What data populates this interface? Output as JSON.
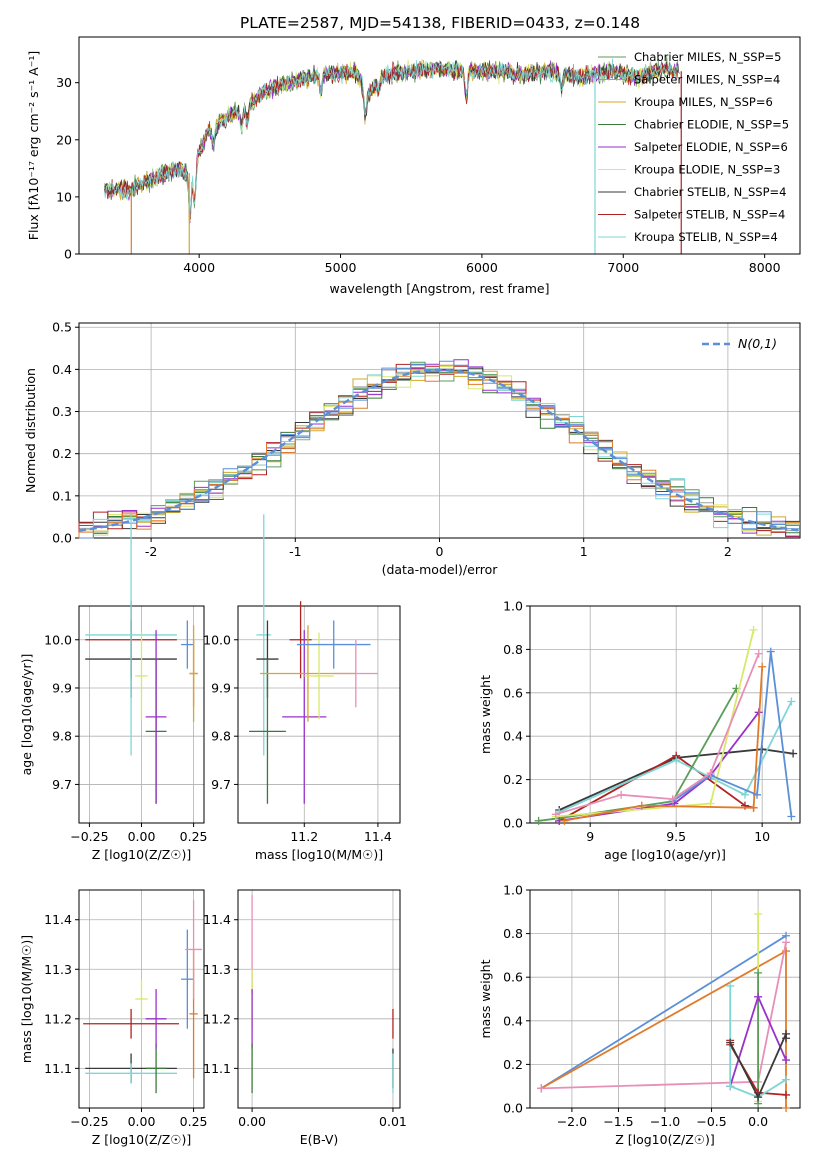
{
  "colors": [
    "#5a9e5a",
    "#98a0a0",
    "#d4a82a",
    "#3a7a3a",
    "#9932cc",
    "#d8e86a",
    "#3a3a3a",
    "#b22222",
    "#7ed6d6",
    "#e07b2a",
    "#5b8fd8",
    "#e88fb8"
  ],
  "chart_data": [
    {
      "id": "spectrum",
      "type": "line",
      "title": "PLATE=2587, MJD=54138, FIBERID=0433, z=0.148",
      "xlabel": "wavelength [Angstrom, rest frame]",
      "ylabel": "Flux [fλ10⁻¹⁷ erg cm⁻² s⁻¹ A⁻¹]",
      "xlim": [
        3150,
        8250
      ],
      "ylim": [
        0,
        38
      ],
      "xticks": [
        4000,
        5000,
        6000,
        7000,
        8000
      ],
      "yticks": [
        0,
        10,
        20,
        30
      ],
      "legend_position": "top-right",
      "legend": [
        "Chabrier MILES, N_SSP=5",
        "Salpeter MILES, N_SSP=4",
        "Kroupa MILES, N_SSP=6",
        "Chabrier ELODIE, N_SSP=5",
        "Salpeter ELODIE, N_SSP=6",
        "Kroupa ELODIE, N_SSP=3",
        "Chabrier STELIB, N_SSP=4",
        "Salpeter STELIB, N_SSP=4",
        "Kroupa STELIB, N_SSP=4"
      ],
      "continuum": {
        "x": [
          3330,
          3500,
          3600,
          3700,
          3850,
          3950,
          4050,
          4200,
          4350,
          4500,
          4700,
          4900,
          5100,
          5200,
          5300,
          5500,
          5700,
          5900,
          6100,
          6300,
          6500,
          6700,
          6900,
          7100,
          7300,
          7400
        ],
        "y": [
          11.5,
          11.0,
          12.5,
          13.5,
          15.0,
          14.0,
          21.0,
          24.0,
          26.0,
          29.0,
          30.5,
          31.5,
          32.0,
          28.0,
          31.5,
          32.0,
          32.5,
          32.0,
          32.0,
          31.5,
          32.0,
          31.0,
          32.0,
          31.0,
          32.5,
          32.0
        ]
      }
    },
    {
      "id": "residuals",
      "type": "step",
      "xlabel": "(data-model)/error",
      "ylabel": "Normed distribution",
      "xlim": [
        -2.5,
        2.5
      ],
      "ylim": [
        0,
        0.51
      ],
      "xticks": [
        -2,
        -1,
        0,
        1,
        2
      ],
      "yticks": [
        0.0,
        0.1,
        0.2,
        0.3,
        0.4,
        0.5
      ],
      "reference_label": "N(0,1)",
      "legend_position": "top-right"
    },
    {
      "id": "age-vs-Z",
      "type": "scatter",
      "xlabel": "Z [log10(Z/Z☉)]",
      "ylabel": "age  [log10(age/yr)]",
      "xlim": [
        -0.3,
        0.3
      ],
      "ylim": [
        9.62,
        10.07
      ],
      "xticks": [
        -0.25,
        0.0,
        0.25
      ],
      "xtick_labels": [
        "−0.25",
        "0.00",
        "0.25"
      ],
      "yticks": [
        9.7,
        9.8,
        9.9,
        10.0
      ],
      "points": [
        {
          "c": 6,
          "x": -0.05,
          "xe": 0.22,
          "y": 9.96,
          "ye": 0.08
        },
        {
          "c": 7,
          "x": -0.05,
          "xe": 0.22,
          "y": 10.0,
          "ye": 0.08
        },
        {
          "c": 8,
          "x": -0.05,
          "xe": 0.22,
          "y": 10.01,
          "ye": 0.25
        },
        {
          "c": 3,
          "x": 0.07,
          "xe": 0.05,
          "y": 9.81,
          "ye": 0.15
        },
        {
          "c": 4,
          "x": 0.07,
          "xe": 0.05,
          "y": 9.84,
          "ye": 0.18
        },
        {
          "c": 5,
          "x": 0.0,
          "xe": 0.03,
          "y": 9.925,
          "ye": 0.09
        },
        {
          "c": 10,
          "x": 0.22,
          "xe": 0.03,
          "y": 9.99,
          "ye": 0.05
        },
        {
          "c": 9,
          "x": 0.25,
          "xe": 0.02,
          "y": 9.93,
          "ye": 0.07
        },
        {
          "c": 2,
          "x": 0.25,
          "xe": 0.02,
          "y": 9.93,
          "ye": 0.1
        }
      ]
    },
    {
      "id": "age-vs-mass",
      "type": "scatter",
      "xlabel": "mass [log10(M/M☉)]",
      "ylabel": "",
      "xlim": [
        11.02,
        11.46
      ],
      "ylim": [
        9.62,
        10.07
      ],
      "xticks": [
        11.2,
        11.4
      ],
      "yticks": [
        9.7,
        9.8,
        9.9,
        10.0
      ],
      "points": [
        {
          "c": 8,
          "x": 11.09,
          "xe": 0.02,
          "y": 10.01,
          "ye": 0.25
        },
        {
          "c": 6,
          "x": 11.1,
          "xe": 0.03,
          "y": 9.96,
          "ye": 0.08
        },
        {
          "c": 3,
          "x": 11.1,
          "xe": 0.05,
          "y": 9.81,
          "ye": 0.15
        },
        {
          "c": 7,
          "x": 11.19,
          "xe": 0.03,
          "y": 10.0,
          "ye": 0.08
        },
        {
          "c": 4,
          "x": 11.2,
          "xe": 0.06,
          "y": 9.84,
          "ye": 0.18
        },
        {
          "c": 2,
          "x": 11.21,
          "xe": 0.13,
          "y": 9.93,
          "ye": 0.1
        },
        {
          "c": 5,
          "x": 11.24,
          "xe": 0.04,
          "y": 9.925,
          "ye": 0.09
        },
        {
          "c": 10,
          "x": 11.28,
          "xe": 0.1,
          "y": 9.99,
          "ye": 0.05
        },
        {
          "c": 11,
          "x": 11.34,
          "xe": 0.06,
          "y": 9.93,
          "ye": 0.07
        }
      ]
    },
    {
      "id": "weight-vs-age",
      "type": "line",
      "xlabel": "age  [log10(age/yr)]",
      "ylabel": "mass weight",
      "xlim": [
        8.65,
        10.22
      ],
      "ylim": [
        0,
        1.0
      ],
      "xticks": [
        9.0,
        9.5,
        10.0
      ],
      "yticks": [
        0.0,
        0.2,
        0.4,
        0.6,
        0.8,
        1.0
      ],
      "series": [
        {
          "c": 6,
          "x": [
            8.82,
            9.5,
            10.0,
            10.18
          ],
          "y": [
            0.06,
            0.3,
            0.34,
            0.32
          ]
        },
        {
          "c": 7,
          "x": [
            8.82,
            9.5,
            9.9,
            9.95
          ],
          "y": [
            0.01,
            0.31,
            0.08,
            0.07
          ]
        },
        {
          "c": 8,
          "x": [
            8.82,
            9.5,
            9.9,
            10.17
          ],
          "y": [
            0.05,
            0.29,
            0.13,
            0.56
          ]
        },
        {
          "c": 0,
          "x": [
            8.7,
            8.8,
            9.48,
            9.85
          ],
          "y": [
            0.01,
            0.02,
            0.1,
            0.62
          ]
        },
        {
          "c": 4,
          "x": [
            8.82,
            9.49,
            9.7,
            9.98
          ],
          "y": [
            0.01,
            0.09,
            0.22,
            0.51
          ]
        },
        {
          "c": 5,
          "x": [
            8.8,
            9.7,
            9.95
          ],
          "y": [
            0.03,
            0.09,
            0.89
          ]
        },
        {
          "c": 9,
          "x": [
            8.85,
            9.3,
            9.95,
            10.0
          ],
          "y": [
            0.01,
            0.08,
            0.07,
            0.72
          ]
        },
        {
          "c": 10,
          "x": [
            9.48,
            9.7,
            9.97,
            10.05,
            10.17
          ],
          "y": [
            0.1,
            0.22,
            0.13,
            0.79,
            0.03
          ]
        },
        {
          "c": 11,
          "x": [
            8.8,
            9.18,
            9.48,
            9.7,
            9.98
          ],
          "y": [
            0.04,
            0.13,
            0.11,
            0.23,
            0.78
          ]
        }
      ]
    },
    {
      "id": "mass-vs-Z",
      "type": "scatter",
      "xlabel": "Z [log10(Z/Z☉)]",
      "ylabel": "mass [log10(M/M☉)]",
      "xlim": [
        -0.3,
        0.3
      ],
      "ylim": [
        11.02,
        11.46
      ],
      "xticks": [
        -0.25,
        0.0,
        0.25
      ],
      "xtick_labels": [
        "−0.25",
        "0.00",
        "0.25"
      ],
      "yticks": [
        11.1,
        11.2,
        11.3,
        11.4
      ],
      "points": [
        {
          "c": 7,
          "x": -0.05,
          "xe": 0.23,
          "y": 11.19,
          "ye": 0.03
        },
        {
          "c": 6,
          "x": -0.05,
          "xe": 0.22,
          "y": 11.1,
          "ye": 0.03
        },
        {
          "c": 8,
          "x": -0.05,
          "xe": 0.22,
          "y": 11.09,
          "ye": 0.02
        },
        {
          "c": 3,
          "x": 0.07,
          "xe": 0.05,
          "y": 11.1,
          "ye": 0.05
        },
        {
          "c": 4,
          "x": 0.07,
          "xe": 0.05,
          "y": 11.2,
          "ye": 0.06
        },
        {
          "c": 5,
          "x": 0.0,
          "xe": 0.03,
          "y": 11.24,
          "ye": 0.04
        },
        {
          "c": 10,
          "x": 0.22,
          "xe": 0.03,
          "y": 11.28,
          "ye": 0.1
        },
        {
          "c": 9,
          "x": 0.25,
          "xe": 0.02,
          "y": 11.21,
          "ye": 0.13
        },
        {
          "c": 11,
          "x": 0.25,
          "xe": 0.04,
          "y": 11.34,
          "ye": 0.1
        }
      ]
    },
    {
      "id": "mass-vs-EBV",
      "type": "scatter",
      "xlabel": "E(B-V)",
      "ylabel": "",
      "xlim": [
        -0.001,
        0.0105
      ],
      "ylim": [
        11.02,
        11.46
      ],
      "xticks": [
        0.0,
        0.01
      ],
      "xtick_labels": [
        "0.00",
        "0.01"
      ],
      "yticks": [
        11.1,
        11.2,
        11.3,
        11.4
      ],
      "points": [
        {
          "c": 11,
          "x": 0.0,
          "xe": 0.0,
          "y": 11.35,
          "ye": 0.1
        },
        {
          "c": 5,
          "x": 0.0,
          "xe": 0.0,
          "y": 11.24,
          "ye": 0.06
        },
        {
          "c": 4,
          "x": 0.0,
          "xe": 0.0,
          "y": 11.2,
          "ye": 0.06
        },
        {
          "c": 3,
          "x": 0.0,
          "xe": 0.0,
          "y": 11.1,
          "ye": 0.05
        },
        {
          "c": 7,
          "x": 0.01,
          "xe": 0.0,
          "y": 11.19,
          "ye": 0.03
        },
        {
          "c": 6,
          "x": 0.01,
          "xe": 0.0,
          "y": 11.1,
          "ye": 0.04
        },
        {
          "c": 8,
          "x": 0.01,
          "xe": 0.0,
          "y": 11.09,
          "ye": 0.04
        }
      ]
    },
    {
      "id": "weight-vs-Z",
      "type": "line",
      "xlabel": "Z [log10(Z/Z☉)]",
      "ylabel": "mass weight",
      "xlim": [
        -2.45,
        0.45
      ],
      "ylim": [
        0,
        1.0
      ],
      "xticks": [
        -2.0,
        -1.5,
        -1.0,
        -0.5,
        0.0
      ],
      "xtick_labels": [
        "−2.0",
        "−1.5",
        "−1.0",
        "−0.5",
        "0.0"
      ],
      "yticks": [
        0.0,
        0.2,
        0.4,
        0.6,
        0.8,
        1.0
      ],
      "series": [
        {
          "c": 10,
          "x": [
            -2.33,
            0.3
          ],
          "y": [
            0.09,
            0.79
          ]
        },
        {
          "c": 9,
          "x": [
            -2.33,
            0.3,
            0.3
          ],
          "y": [
            0.09,
            0.72,
            0.0
          ]
        },
        {
          "c": 11,
          "x": [
            -2.33,
            0.0,
            0.3
          ],
          "y": [
            0.09,
            0.12,
            0.76
          ]
        },
        {
          "c": 5,
          "x": [
            0.0,
            0.0
          ],
          "y": [
            0.03,
            0.89
          ]
        },
        {
          "c": 0,
          "x": [
            0.0,
            0.0
          ],
          "y": [
            0.62,
            0.02
          ]
        },
        {
          "c": 4,
          "x": [
            -0.3,
            0.0,
            0.3
          ],
          "y": [
            0.1,
            0.51,
            0.22
          ]
        },
        {
          "c": 7,
          "x": [
            -0.3,
            -0.3,
            0.0,
            0.3
          ],
          "y": [
            0.31,
            0.29,
            0.07,
            0.06
          ]
        },
        {
          "c": 8,
          "x": [
            -0.3,
            -0.3,
            0.0,
            0.3
          ],
          "y": [
            0.56,
            0.1,
            0.05,
            0.13
          ]
        },
        {
          "c": 6,
          "x": [
            -0.3,
            0.0,
            0.3,
            0.3
          ],
          "y": [
            0.3,
            0.05,
            0.34,
            0.32
          ]
        }
      ]
    }
  ]
}
